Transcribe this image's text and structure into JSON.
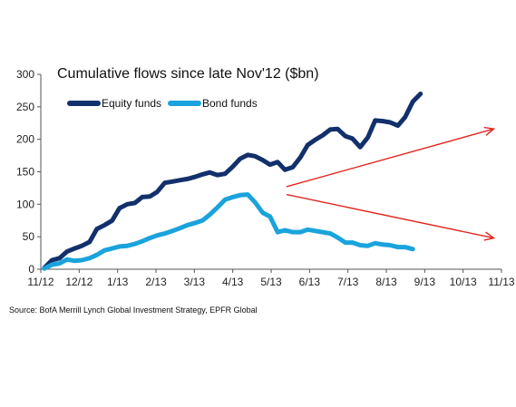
{
  "chart_data": {
    "type": "line",
    "title": "Cumulative flows since late Nov'12 ($bn)",
    "ylim": [
      0,
      300
    ],
    "yticks": [
      0,
      50,
      100,
      150,
      200,
      250,
      300
    ],
    "xlim": [
      0,
      12
    ],
    "xticks": [
      {
        "label": "11/12",
        "pos": 0
      },
      {
        "label": "12/12",
        "pos": 1
      },
      {
        "label": "1/13",
        "pos": 2
      },
      {
        "label": "2/13",
        "pos": 3
      },
      {
        "label": "3/13",
        "pos": 4
      },
      {
        "label": "4/13",
        "pos": 5
      },
      {
        "label": "5/13",
        "pos": 6
      },
      {
        "label": "6/13",
        "pos": 7
      },
      {
        "label": "7/13",
        "pos": 8
      },
      {
        "label": "8/13",
        "pos": 9
      },
      {
        "label": "9/13",
        "pos": 10
      },
      {
        "label": "10/13",
        "pos": 11
      },
      {
        "label": "11/13",
        "pos": 12
      }
    ],
    "legend_position": "top-left",
    "series": [
      {
        "name": "Equity funds",
        "color": "#12306b",
        "x": [
          0.09,
          0.29,
          0.49,
          0.68,
          0.88,
          1.07,
          1.27,
          1.46,
          1.66,
          1.86,
          2.05,
          2.25,
          2.45,
          2.64,
          2.84,
          3.03,
          3.23,
          3.43,
          3.62,
          3.82,
          4.01,
          4.21,
          4.4,
          4.6,
          4.8,
          5.0,
          5.19,
          5.39,
          5.58,
          5.78,
          5.97,
          6.17,
          6.36,
          6.56,
          6.76,
          6.95,
          7.14,
          7.34,
          7.54,
          7.73,
          7.93,
          8.12,
          8.32,
          8.52,
          8.71,
          8.91,
          9.1,
          9.3,
          9.49,
          9.69,
          9.89,
          10.08,
          10.28,
          10.48,
          10.67,
          10.87,
          11.06,
          11.26,
          11.45
        ],
        "y": [
          2,
          14,
          17,
          27,
          32,
          36,
          42,
          62,
          68,
          75,
          94,
          100,
          102,
          111,
          112,
          119,
          133,
          135,
          137,
          139,
          142,
          146,
          149,
          145,
          147,
          158,
          170,
          176,
          174,
          168,
          161,
          165,
          153,
          157,
          172,
          191,
          199,
          206,
          215,
          216,
          205,
          201,
          188,
          203,
          229,
          228,
          226,
          221,
          234,
          258,
          270,
          null,
          null,
          null,
          null,
          null,
          null,
          null,
          null
        ]
      },
      {
        "name": "Bond funds",
        "color": "#1aa3dc",
        "x": [
          0.09,
          0.29,
          0.49,
          0.68,
          0.88,
          1.07,
          1.27,
          1.46,
          1.66,
          1.86,
          2.05,
          2.25,
          2.45,
          2.64,
          2.84,
          3.03,
          3.23,
          3.43,
          3.62,
          3.82,
          4.01,
          4.21,
          4.4,
          4.6,
          4.8,
          5.0,
          5.19,
          5.39,
          5.58,
          5.78,
          5.97,
          6.17,
          6.36,
          6.56,
          6.76,
          6.95,
          7.14,
          7.34,
          7.54,
          7.73,
          7.93,
          8.12,
          8.32,
          8.52,
          8.71,
          8.91,
          9.1,
          9.3,
          9.49,
          9.69,
          9.89,
          10.08,
          10.28,
          10.48,
          10.67,
          10.87,
          11.06,
          11.26,
          11.45
        ],
        "y": [
          1,
          7,
          9,
          15,
          13,
          14,
          17,
          22,
          29,
          32,
          35,
          36,
          39,
          43,
          48,
          52,
          55,
          59,
          63,
          68,
          71,
          75,
          84,
          95,
          107,
          111,
          114,
          115,
          103,
          87,
          81,
          57,
          60,
          57,
          57,
          61,
          59,
          57,
          55,
          49,
          41,
          41,
          37,
          36,
          40,
          38,
          37,
          34,
          34,
          31,
          null,
          null,
          null,
          null,
          null,
          null,
          null,
          null,
          null
        ]
      }
    ],
    "annotations": [
      {
        "type": "arrow",
        "color": "#e0261e",
        "from": [
          6.4,
          127
        ],
        "to": [
          11.8,
          216
        ]
      },
      {
        "type": "arrow",
        "color": "#e0261e",
        "from": [
          6.4,
          115
        ],
        "to": [
          11.8,
          48
        ]
      }
    ]
  },
  "source": "Source: BofA Merrill Lynch Global Investment Strategy, EPFR Global"
}
